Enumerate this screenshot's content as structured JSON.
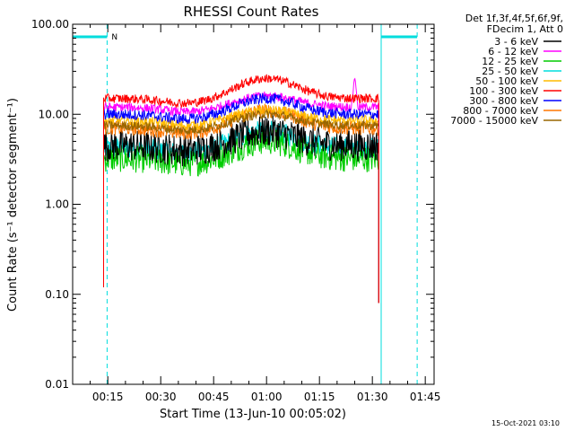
{
  "chart_data": {
    "type": "line",
    "title": "RHESSI Count Rates",
    "xlabel": "Start Time (13-Jun-10 00:05:02)",
    "ylabel": "Count Rate (s⁻¹ detector segment⁻¹)",
    "x_ticks": [
      "00:15",
      "00:30",
      "00:45",
      "01:00",
      "01:15",
      "01:30",
      "01:45"
    ],
    "x_tick_minutes": [
      15,
      30,
      45,
      60,
      75,
      90,
      105
    ],
    "xlim_minutes": [
      5.03,
      107.5
    ],
    "y_scale": "log",
    "y_ticks": [
      "0.01",
      "0.10",
      "1.00",
      "10.00",
      "100.00"
    ],
    "ylim": [
      0.01,
      100
    ],
    "legend_header": [
      "Det 1f,3f,4f,5f,6f,9f,",
      "FDecim 1, Att 0"
    ],
    "legend_position": "outside-right",
    "series": [
      {
        "name": "3 - 6 keV",
        "color": "#000000",
        "base": 4.5,
        "peak": 6.5,
        "noise": 0.18
      },
      {
        "name": "6 - 12 keV",
        "color": "#ff00ff",
        "base": 12.0,
        "peak": 16.0,
        "noise": 0.05
      },
      {
        "name": "12 - 25 keV",
        "color": "#00cc00",
        "base": 3.2,
        "peak": 5.0,
        "noise": 0.15
      },
      {
        "name": "25 - 50 keV",
        "color": "#00dddd",
        "base": 4.2,
        "peak": 6.5,
        "noise": 0.12
      },
      {
        "name": "50 - 100 keV",
        "color": "#ffbb00",
        "base": 8.5,
        "peak": 11.0,
        "noise": 0.06
      },
      {
        "name": "100 - 300 keV",
        "color": "#ff0000",
        "base": 15.0,
        "peak": 25.0,
        "noise": 0.05
      },
      {
        "name": "300 - 800 keV",
        "color": "#0000ff",
        "base": 10.0,
        "peak": 15.0,
        "noise": 0.06
      },
      {
        "name": "800 - 7000 keV",
        "color": "#ff7700",
        "base": 7.0,
        "peak": 11.0,
        "noise": 0.08
      },
      {
        "name": "7000 - 15000 keV",
        "color": "#996600",
        "base": 7.5,
        "peak": 10.0,
        "noise": 0.05
      }
    ],
    "data_window_minutes": [
      13.8,
      91.8
    ],
    "peak_time_minutes": 60,
    "magenta_spike": {
      "time_minutes": 85,
      "value": 25
    },
    "night_windows": [
      {
        "from_minutes": 5.03,
        "to_minutes": 14.8
      },
      {
        "from_minutes": 92.5,
        "to_minutes": 102.7
      }
    ],
    "saa_mark": "N",
    "grid": false
  },
  "footer": {
    "timestamp": "15-Oct-2021 03:10"
  }
}
